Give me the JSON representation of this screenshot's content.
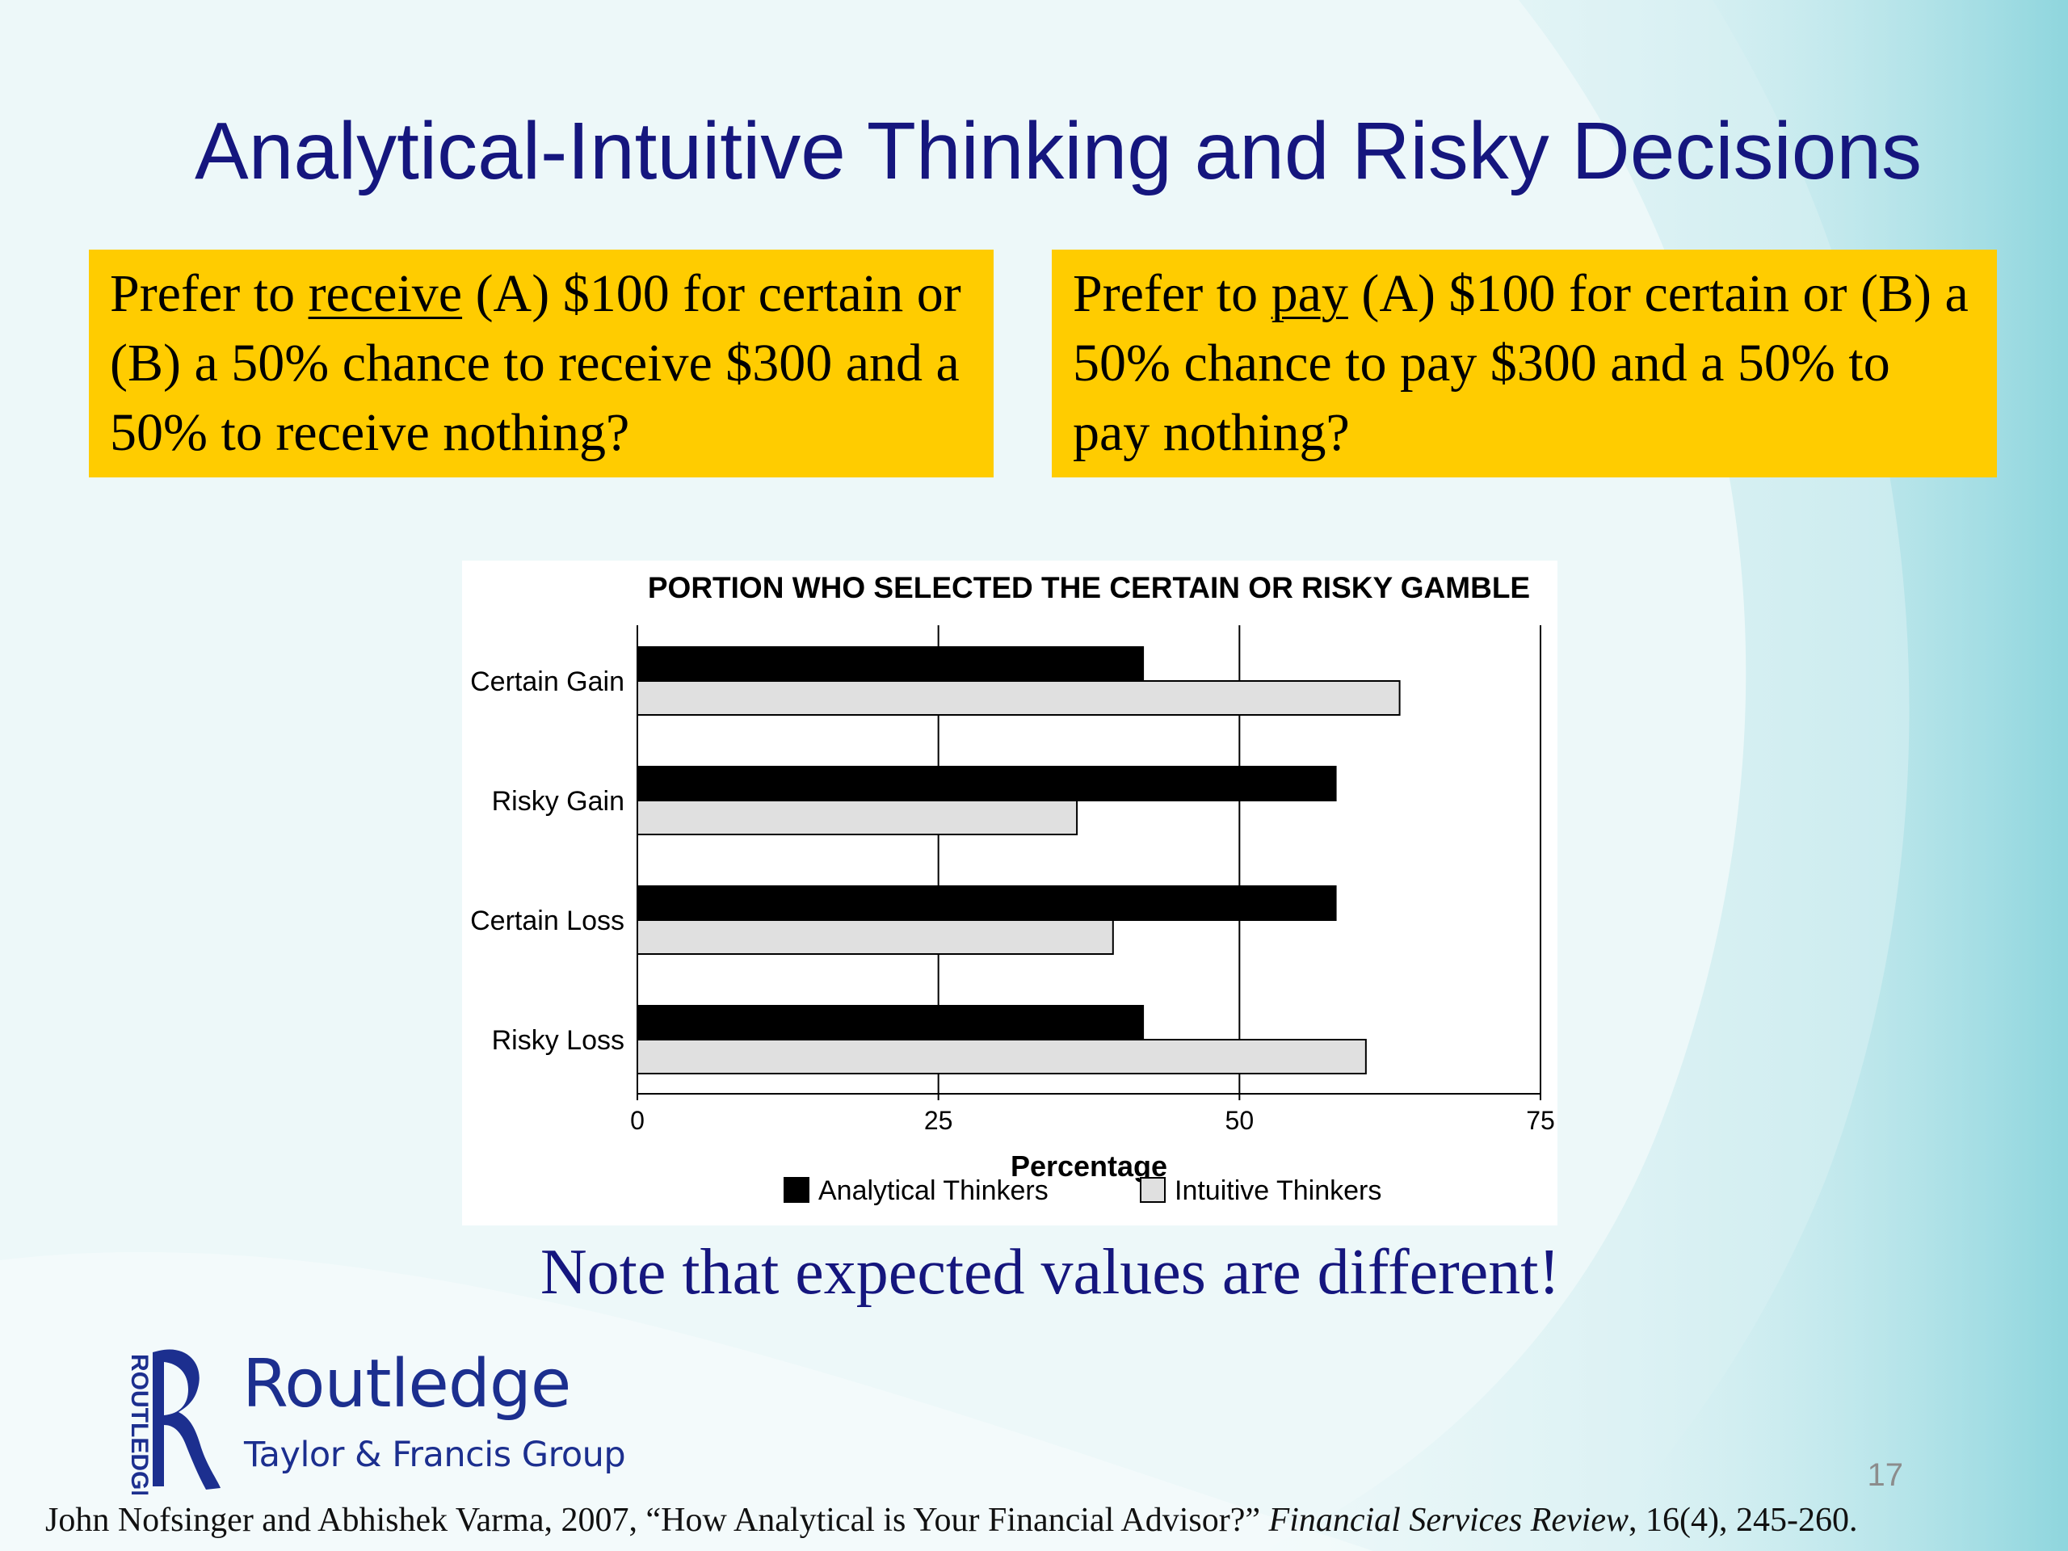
{
  "slide": {
    "title": "Analytical-Intuitive Thinking and Risky Decisions",
    "note": "Note that expected values are different!",
    "page_number": "17"
  },
  "question_left": {
    "pre": "Prefer to ",
    "underlined": "receive",
    "post": " (A) $100 for certain or (B) a 50% chance to receive $300 and a 50% to receive nothing?"
  },
  "question_right": {
    "pre": "Prefer to ",
    "underlined": "pay",
    "post": " (A) $100 for certain or (B) a 50% chance to pay $300 and a 50% to pay nothing?"
  },
  "logo": {
    "name": "Routledge",
    "subtitle": "Taylor & Francis Group",
    "spine_text": "ROUTLEDGE"
  },
  "citation": {
    "authors": "John Nofsinger and Abhishek Varma, 2007, “How Analytical is Your Financial Advisor?” ",
    "journal": "Financial Services Review",
    "details": ", 16(4), 245-260."
  },
  "colors": {
    "title": "#15167e",
    "box": "#ffcc00",
    "analytical": "#000000",
    "intuitive": "#e0e0e0",
    "logo": "#1c2f8f"
  },
  "chart_data": {
    "type": "bar",
    "orientation": "horizontal",
    "title": "PORTION WHO SELECTED THE CERTAIN OR RISKY GAMBLE",
    "xlabel": "Percentage",
    "ylabel": "",
    "xlim": [
      0,
      75
    ],
    "xticks": [
      0,
      25,
      50,
      75
    ],
    "grid": "vertical",
    "legend_position": "bottom",
    "categories": [
      "Certain Gain",
      "Risky Gain",
      "Certain Loss",
      "Risky Loss"
    ],
    "series": [
      {
        "name": "Analytical Thinkers",
        "color": "#000000",
        "values": [
          42,
          58,
          58,
          42
        ]
      },
      {
        "name": "Intuitive Thinkers",
        "color": "#e0e0e0",
        "values": [
          63.3,
          36.5,
          39.5,
          60.5
        ]
      }
    ]
  }
}
